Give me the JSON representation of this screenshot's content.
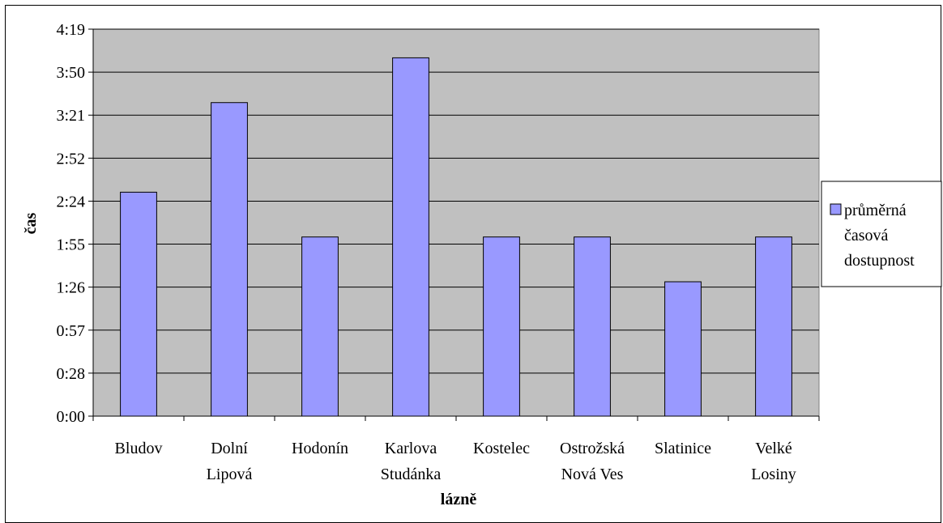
{
  "chart_data": {
    "type": "bar",
    "xlabel": "lázně",
    "ylabel": "čas",
    "categories": [
      [
        "Bludov"
      ],
      [
        "Dolní",
        "Lipová"
      ],
      [
        "Hodonín"
      ],
      [
        "Karlova",
        "Studánka"
      ],
      [
        "Kostelec"
      ],
      [
        "Ostrožská",
        "Nová Ves"
      ],
      [
        "Slatinice"
      ],
      [
        "Velké",
        "Losiny"
      ]
    ],
    "series": [
      {
        "name": "průměrná časová dostupnost",
        "name_lines": [
          "průměrná",
          "časová",
          "dostupnost"
        ],
        "color": "#9999ff",
        "values_minutes": [
          150,
          210,
          120,
          240,
          120,
          120,
          90,
          120
        ]
      }
    ],
    "y_ticks": [
      "0:00",
      "0:28",
      "0:57",
      "1:26",
      "1:55",
      "2:24",
      "2:52",
      "3:21",
      "3:50",
      "4:19"
    ],
    "ylim_minutes": [
      0,
      259.2
    ],
    "grid": true,
    "plot_background": "#c0c0c0",
    "legend_position": "right"
  }
}
